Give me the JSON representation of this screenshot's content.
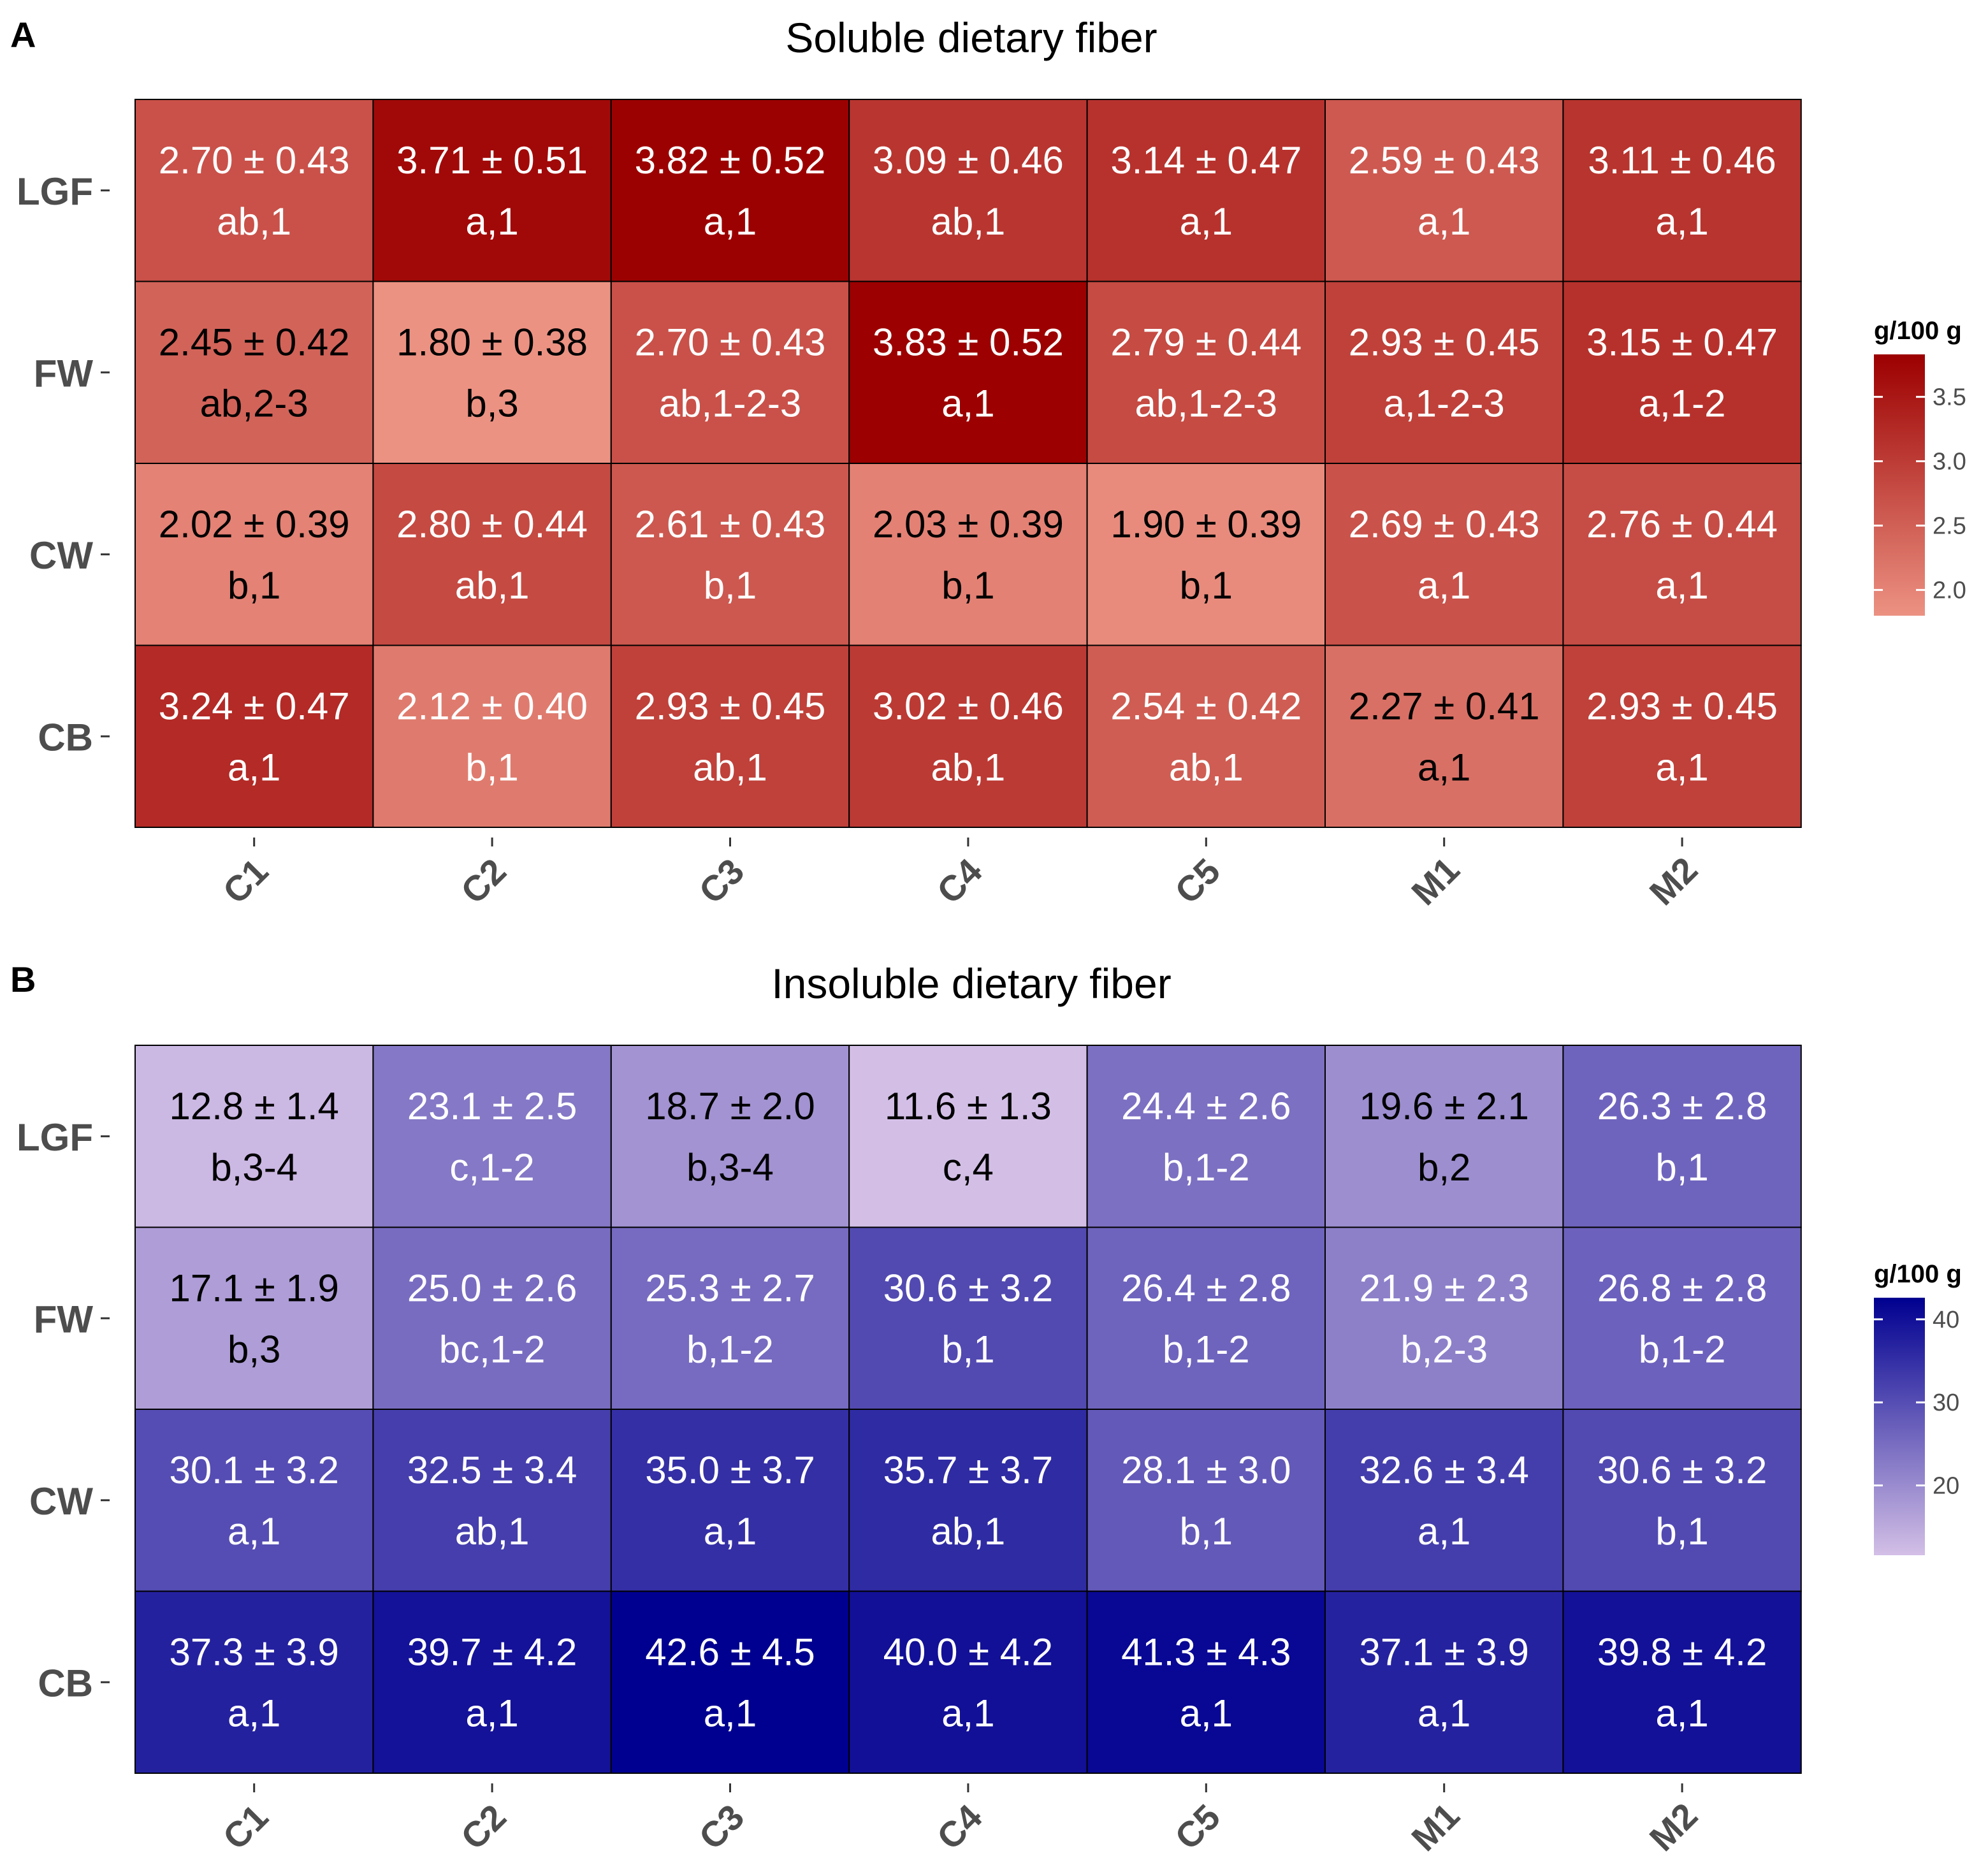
{
  "chart_data": [
    {
      "panel_label": "A",
      "type": "heatmap",
      "title": "Soluble dietary fiber",
      "x_categories": [
        "C1",
        "C2",
        "C3",
        "C4",
        "C5",
        "M1",
        "M2"
      ],
      "y_categories": [
        "LGF",
        "FW",
        "CW",
        "CB"
      ],
      "value_range": [
        1.8,
        3.83
      ],
      "colors": {
        "low": "#ec9283",
        "high": "#9c0000"
      },
      "legend": {
        "title": "g/100 g",
        "ticks": [
          3.5,
          3.0,
          2.5,
          2.0
        ],
        "tick_labels": [
          "3.5",
          "3.0",
          "2.5",
          "2.0"
        ],
        "position": "right"
      },
      "values": [
        [
          2.7,
          3.71,
          3.82,
          3.09,
          3.14,
          2.59,
          3.11
        ],
        [
          2.45,
          1.8,
          2.7,
          3.83,
          2.79,
          2.93,
          3.15
        ],
        [
          2.02,
          2.8,
          2.61,
          2.03,
          1.9,
          2.69,
          2.76
        ],
        [
          3.24,
          2.12,
          2.93,
          3.02,
          2.54,
          2.27,
          2.93
        ]
      ],
      "cells": [
        [
          {
            "text": "2.70 ± 0.43",
            "sub": "ab,1"
          },
          {
            "text": "3.71 ± 0.51",
            "sub": "a,1"
          },
          {
            "text": "3.82 ± 0.52",
            "sub": "a,1"
          },
          {
            "text": "3.09 ± 0.46",
            "sub": "ab,1"
          },
          {
            "text": "3.14 ± 0.47",
            "sub": "a,1"
          },
          {
            "text": "2.59 ± 0.43",
            "sub": "a,1"
          },
          {
            "text": "3.11 ± 0.46",
            "sub": "a,1"
          }
        ],
        [
          {
            "text": "2.45 ± 0.42",
            "sub": "ab,2-3"
          },
          {
            "text": "1.80 ± 0.38",
            "sub": "b,3"
          },
          {
            "text": "2.70 ± 0.43",
            "sub": "ab,1-2-3"
          },
          {
            "text": "3.83 ± 0.52",
            "sub": "a,1"
          },
          {
            "text": "2.79 ± 0.44",
            "sub": "ab,1-2-3"
          },
          {
            "text": "2.93 ± 0.45",
            "sub": "a,1-2-3"
          },
          {
            "text": "3.15 ± 0.47",
            "sub": "a,1-2"
          }
        ],
        [
          {
            "text": "2.02 ± 0.39",
            "sub": "b,1"
          },
          {
            "text": "2.80 ± 0.44",
            "sub": "ab,1"
          },
          {
            "text": "2.61 ± 0.43",
            "sub": "b,1"
          },
          {
            "text": "2.03 ± 0.39",
            "sub": "b,1"
          },
          {
            "text": "1.90 ± 0.39",
            "sub": "b,1"
          },
          {
            "text": "2.69 ± 0.43",
            "sub": "a,1"
          },
          {
            "text": "2.76 ± 0.44",
            "sub": "a,1"
          }
        ],
        [
          {
            "text": "3.24 ± 0.47",
            "sub": "a,1"
          },
          {
            "text": "2.12 ± 0.40",
            "sub": "b,1"
          },
          {
            "text": "2.93 ± 0.45",
            "sub": "ab,1"
          },
          {
            "text": "3.02 ± 0.46",
            "sub": "ab,1"
          },
          {
            "text": "2.54 ± 0.42",
            "sub": "ab,1"
          },
          {
            "text": "2.27 ± 0.41",
            "sub": "a,1"
          },
          {
            "text": "2.93 ± 0.45",
            "sub": "a,1"
          }
        ]
      ],
      "text_dark_cells": [
        [
          1,
          0
        ],
        [
          1,
          1
        ],
        [
          3,
          5
        ],
        [
          2,
          0
        ],
        [
          2,
          3
        ],
        [
          2,
          4
        ]
      ]
    },
    {
      "panel_label": "B",
      "type": "heatmap",
      "title": "Insoluble dietary fiber",
      "x_categories": [
        "C1",
        "C2",
        "C3",
        "C4",
        "C5",
        "M1",
        "M2"
      ],
      "y_categories": [
        "LGF",
        "FW",
        "CW",
        "CB"
      ],
      "value_range": [
        11.6,
        42.6
      ],
      "colors": {
        "low": "#d3bfe6",
        "high": "#000090"
      },
      "legend": {
        "title": "g/100 g",
        "ticks": [
          40,
          30,
          20
        ],
        "tick_labels": [
          "40",
          "30",
          "20"
        ],
        "position": "right"
      },
      "values": [
        [
          12.8,
          23.1,
          18.7,
          11.6,
          24.4,
          19.6,
          26.3
        ],
        [
          17.1,
          25.0,
          25.3,
          30.6,
          26.4,
          21.9,
          26.8
        ],
        [
          30.1,
          32.5,
          35.0,
          35.7,
          28.1,
          32.6,
          30.6
        ],
        [
          37.3,
          39.7,
          42.6,
          40.0,
          41.3,
          37.1,
          39.8
        ]
      ],
      "cells": [
        [
          {
            "text": "12.8 ± 1.4",
            "sub": "b,3-4"
          },
          {
            "text": "23.1 ± 2.5",
            "sub": "c,1-2"
          },
          {
            "text": "18.7 ± 2.0",
            "sub": "b,3-4"
          },
          {
            "text": "11.6 ± 1.3",
            "sub": "c,4"
          },
          {
            "text": "24.4 ± 2.6",
            "sub": "b,1-2"
          },
          {
            "text": "19.6 ± 2.1",
            "sub": "b,2"
          },
          {
            "text": "26.3 ± 2.8",
            "sub": "b,1"
          }
        ],
        [
          {
            "text": "17.1 ± 1.9",
            "sub": "b,3"
          },
          {
            "text": "25.0 ± 2.6",
            "sub": "bc,1-2"
          },
          {
            "text": "25.3 ± 2.7",
            "sub": "b,1-2"
          },
          {
            "text": "30.6 ± 3.2",
            "sub": "b,1"
          },
          {
            "text": "26.4 ± 2.8",
            "sub": "b,1-2"
          },
          {
            "text": "21.9 ± 2.3",
            "sub": "b,2-3"
          },
          {
            "text": "26.8 ± 2.8",
            "sub": "b,1-2"
          }
        ],
        [
          {
            "text": "30.1 ± 3.2",
            "sub": "a,1"
          },
          {
            "text": "32.5 ± 3.4",
            "sub": "ab,1"
          },
          {
            "text": "35.0 ± 3.7",
            "sub": "a,1"
          },
          {
            "text": "35.7 ± 3.7",
            "sub": "ab,1"
          },
          {
            "text": "28.1 ± 3.0",
            "sub": "b,1"
          },
          {
            "text": "32.6 ± 3.4",
            "sub": "a,1"
          },
          {
            "text": "30.6 ± 3.2",
            "sub": "b,1"
          }
        ],
        [
          {
            "text": "37.3 ± 3.9",
            "sub": "a,1"
          },
          {
            "text": "39.7 ± 4.2",
            "sub": "a,1"
          },
          {
            "text": "42.6 ± 4.5",
            "sub": "a,1"
          },
          {
            "text": "40.0 ± 4.2",
            "sub": "a,1"
          },
          {
            "text": "41.3 ± 4.3",
            "sub": "a,1"
          },
          {
            "text": "37.1 ± 3.9",
            "sub": "a,1"
          },
          {
            "text": "39.8 ± 4.2",
            "sub": "a,1"
          }
        ]
      ],
      "text_dark_cells": [
        [
          0,
          0
        ],
        [
          0,
          2
        ],
        [
          0,
          3
        ],
        [
          0,
          5
        ],
        [
          1,
          0
        ]
      ]
    }
  ]
}
